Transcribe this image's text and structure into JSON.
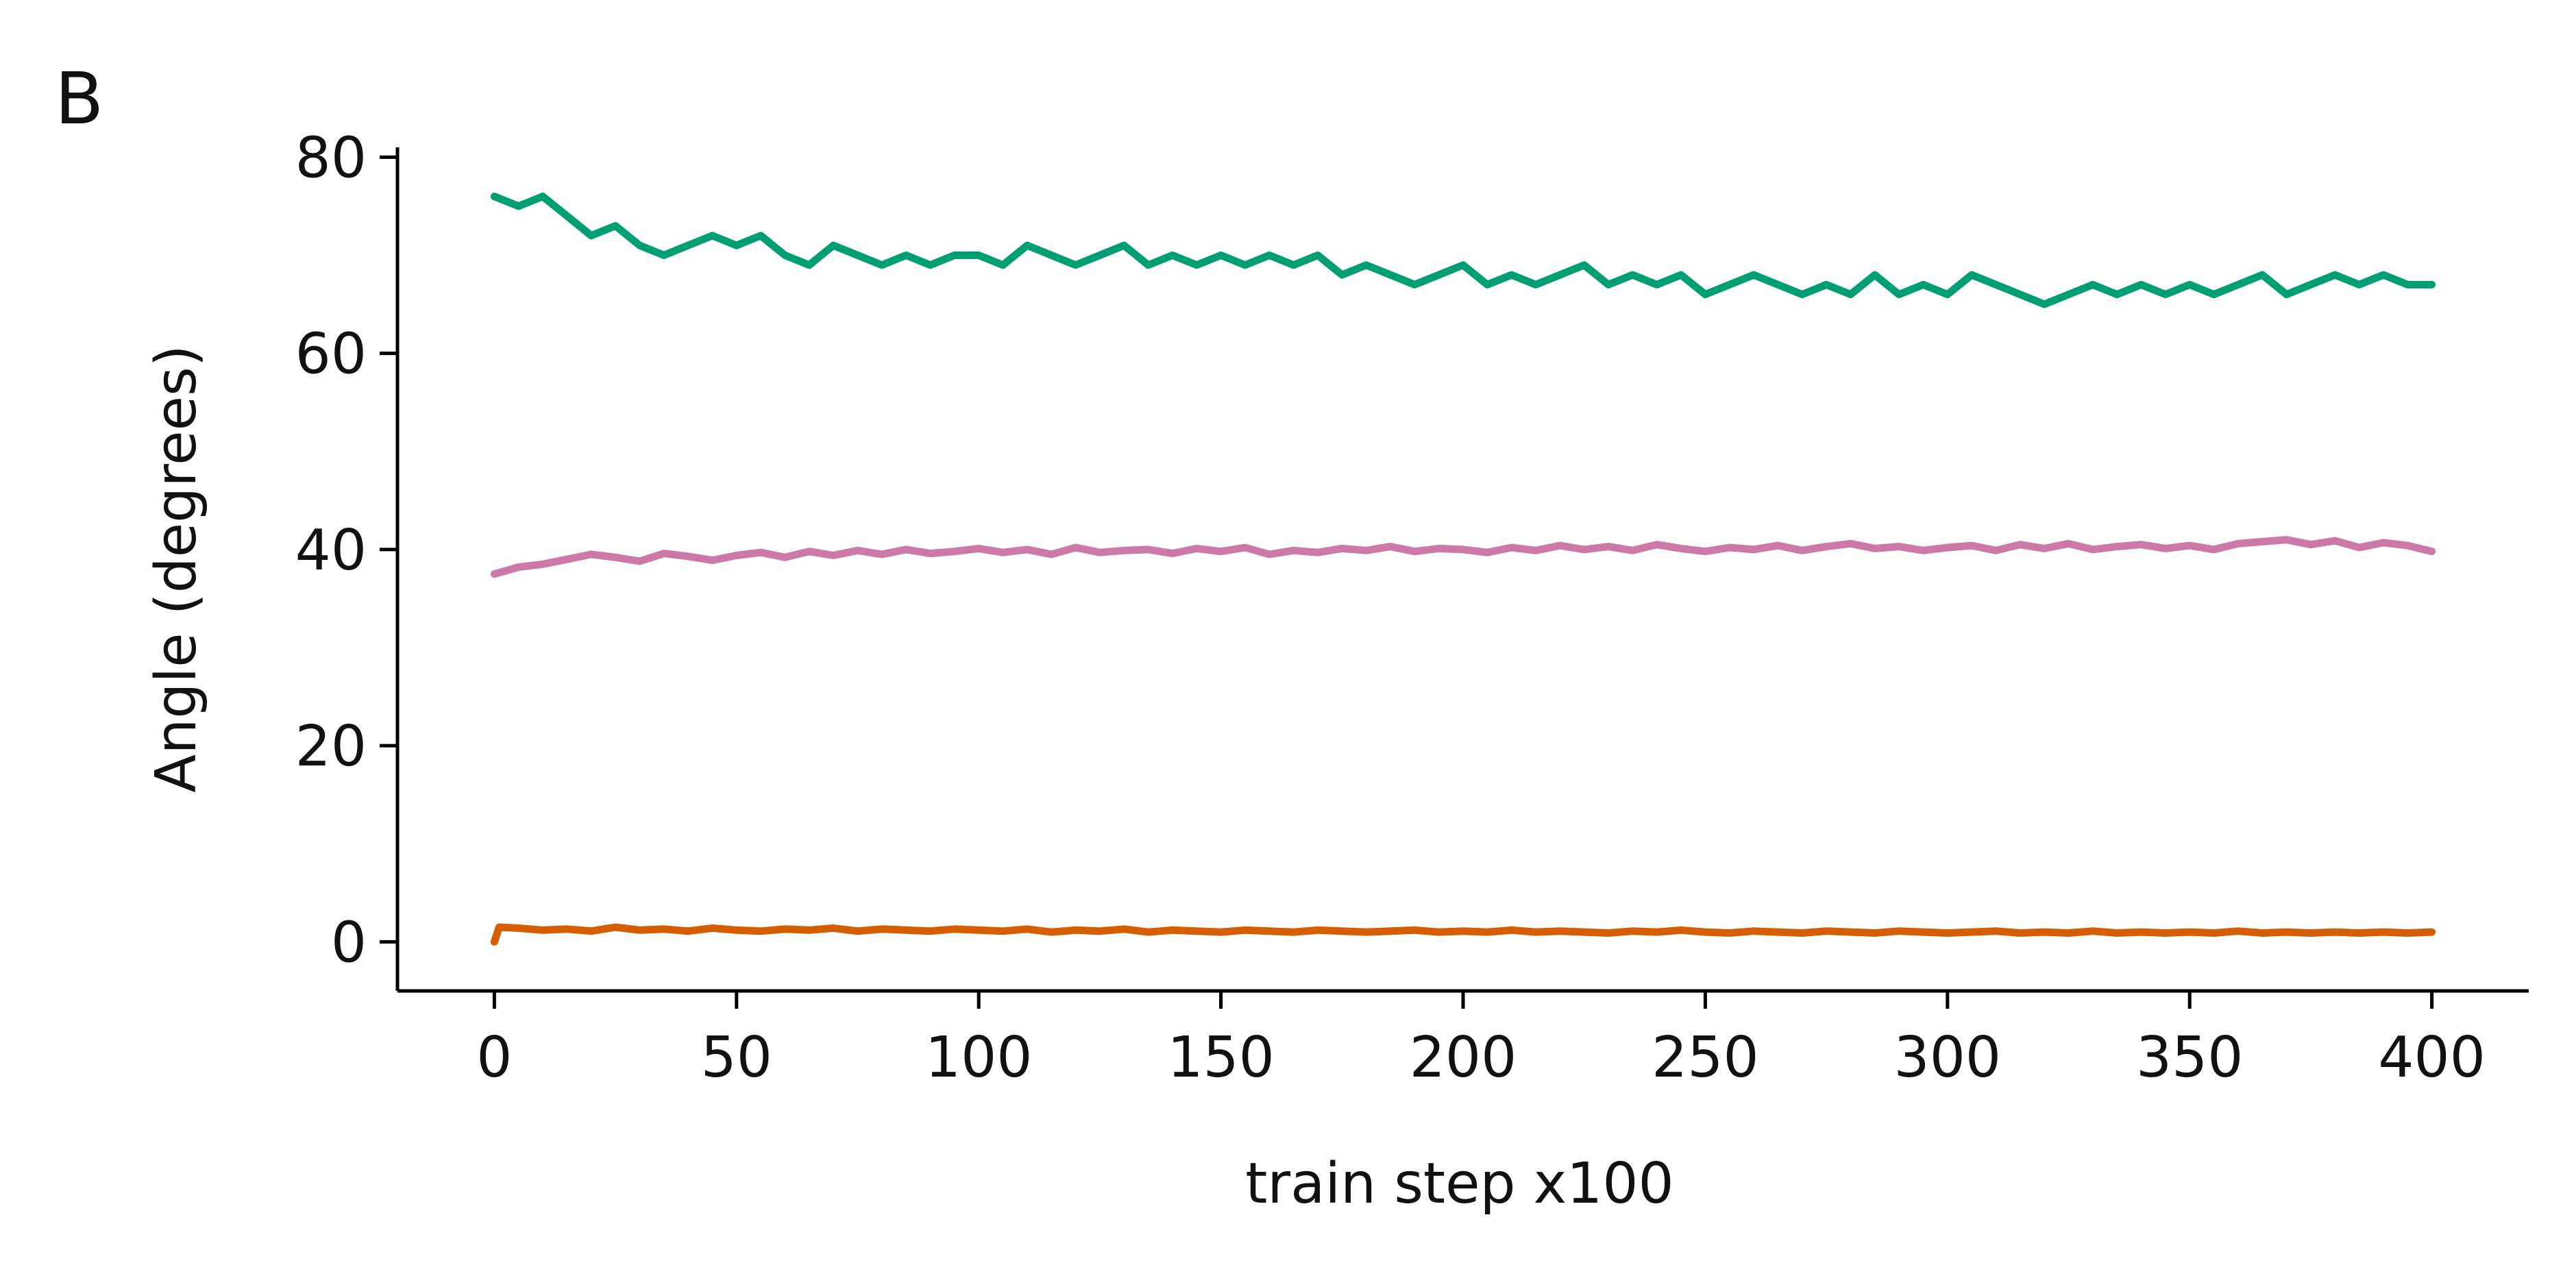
{
  "panel_label": "B",
  "chart_data": {
    "type": "line",
    "title": "",
    "xlabel": "train step x100",
    "ylabel": "Angle (degrees)",
    "xlim": [
      -20,
      420
    ],
    "ylim": [
      -5,
      81
    ],
    "xticks": [
      0,
      50,
      100,
      150,
      200,
      250,
      300,
      350,
      400
    ],
    "yticks": [
      0,
      20,
      40,
      60,
      80
    ],
    "grid": false,
    "legend": "none",
    "series": [
      {
        "color": "#009e73",
        "x": [
          0,
          5,
          10,
          15,
          20,
          25,
          30,
          35,
          40,
          45,
          50,
          55,
          60,
          65,
          70,
          75,
          80,
          85,
          90,
          95,
          100,
          105,
          110,
          115,
          120,
          125,
          130,
          135,
          140,
          145,
          150,
          155,
          160,
          165,
          170,
          175,
          180,
          185,
          190,
          195,
          200,
          205,
          210,
          215,
          220,
          225,
          230,
          235,
          240,
          245,
          250,
          255,
          260,
          265,
          270,
          275,
          280,
          285,
          290,
          295,
          300,
          305,
          310,
          315,
          320,
          325,
          330,
          335,
          340,
          345,
          350,
          355,
          360,
          365,
          370,
          375,
          380,
          385,
          390,
          395,
          400
        ],
        "y": [
          76,
          75,
          76,
          74,
          72,
          73,
          71,
          70,
          71,
          72,
          71,
          72,
          70,
          69,
          71,
          70,
          69,
          70,
          69,
          70,
          70,
          69,
          71,
          70,
          69,
          70,
          71,
          69,
          70,
          69,
          70,
          69,
          70,
          69,
          70,
          68,
          69,
          68,
          67,
          68,
          69,
          67,
          68,
          67,
          68,
          69,
          67,
          68,
          67,
          68,
          66,
          67,
          68,
          67,
          66,
          67,
          66,
          68,
          66,
          67,
          66,
          68,
          67,
          66,
          65,
          66,
          67,
          66,
          67,
          66,
          67,
          66,
          67,
          68,
          66,
          67,
          68,
          67,
          68,
          67,
          67
        ]
      },
      {
        "color": "#cc79a7",
        "x": [
          0,
          5,
          10,
          15,
          20,
          25,
          30,
          35,
          40,
          45,
          50,
          55,
          60,
          65,
          70,
          75,
          80,
          85,
          90,
          95,
          100,
          105,
          110,
          115,
          120,
          125,
          130,
          135,
          140,
          145,
          150,
          155,
          160,
          165,
          170,
          175,
          180,
          185,
          190,
          195,
          200,
          205,
          210,
          215,
          220,
          225,
          230,
          235,
          240,
          245,
          250,
          255,
          260,
          265,
          270,
          275,
          280,
          285,
          290,
          295,
          300,
          305,
          310,
          315,
          320,
          325,
          330,
          335,
          340,
          345,
          350,
          355,
          360,
          365,
          370,
          375,
          380,
          385,
          390,
          395,
          400
        ],
        "y": [
          37.5,
          38.2,
          38.5,
          39.0,
          39.5,
          39.2,
          38.8,
          39.6,
          39.3,
          38.9,
          39.4,
          39.7,
          39.2,
          39.8,
          39.4,
          39.9,
          39.5,
          40.0,
          39.6,
          39.8,
          40.1,
          39.7,
          40.0,
          39.5,
          40.2,
          39.7,
          39.9,
          40.0,
          39.6,
          40.1,
          39.8,
          40.2,
          39.5,
          39.9,
          39.7,
          40.1,
          39.9,
          40.3,
          39.8,
          40.1,
          40.0,
          39.7,
          40.2,
          39.9,
          40.4,
          40.0,
          40.3,
          39.9,
          40.5,
          40.1,
          39.8,
          40.2,
          40.0,
          40.4,
          39.9,
          40.3,
          40.6,
          40.1,
          40.3,
          39.9,
          40.2,
          40.4,
          39.9,
          40.5,
          40.1,
          40.6,
          40.0,
          40.3,
          40.5,
          40.1,
          40.4,
          40.0,
          40.6,
          40.8,
          41.0,
          40.5,
          40.9,
          40.2,
          40.7,
          40.4,
          39.8
        ]
      },
      {
        "color": "#d55e00",
        "x": [
          0,
          1,
          5,
          10,
          15,
          20,
          25,
          30,
          35,
          40,
          45,
          50,
          55,
          60,
          65,
          70,
          75,
          80,
          85,
          90,
          95,
          100,
          105,
          110,
          115,
          120,
          125,
          130,
          135,
          140,
          145,
          150,
          155,
          160,
          165,
          170,
          175,
          180,
          185,
          190,
          195,
          200,
          205,
          210,
          215,
          220,
          225,
          230,
          235,
          240,
          245,
          250,
          255,
          260,
          265,
          270,
          275,
          280,
          285,
          290,
          295,
          300,
          305,
          310,
          315,
          320,
          325,
          330,
          335,
          340,
          345,
          350,
          355,
          360,
          365,
          370,
          375,
          380,
          385,
          390,
          395,
          400
        ],
        "y": [
          0.0,
          1.5,
          1.4,
          1.2,
          1.3,
          1.1,
          1.5,
          1.2,
          1.3,
          1.1,
          1.4,
          1.2,
          1.1,
          1.3,
          1.2,
          1.4,
          1.1,
          1.3,
          1.2,
          1.1,
          1.3,
          1.2,
          1.1,
          1.3,
          1.0,
          1.2,
          1.1,
          1.3,
          1.0,
          1.2,
          1.1,
          1.0,
          1.2,
          1.1,
          1.0,
          1.2,
          1.1,
          1.0,
          1.1,
          1.2,
          1.0,
          1.1,
          1.0,
          1.2,
          1.0,
          1.1,
          1.0,
          0.9,
          1.1,
          1.0,
          1.2,
          1.0,
          0.9,
          1.1,
          1.0,
          0.9,
          1.1,
          1.0,
          0.9,
          1.1,
          1.0,
          0.9,
          1.0,
          1.1,
          0.9,
          1.0,
          0.9,
          1.1,
          0.9,
          1.0,
          0.9,
          1.0,
          0.9,
          1.1,
          0.9,
          1.0,
          0.9,
          1.0,
          0.9,
          1.0,
          0.9,
          1.0
        ]
      }
    ]
  }
}
